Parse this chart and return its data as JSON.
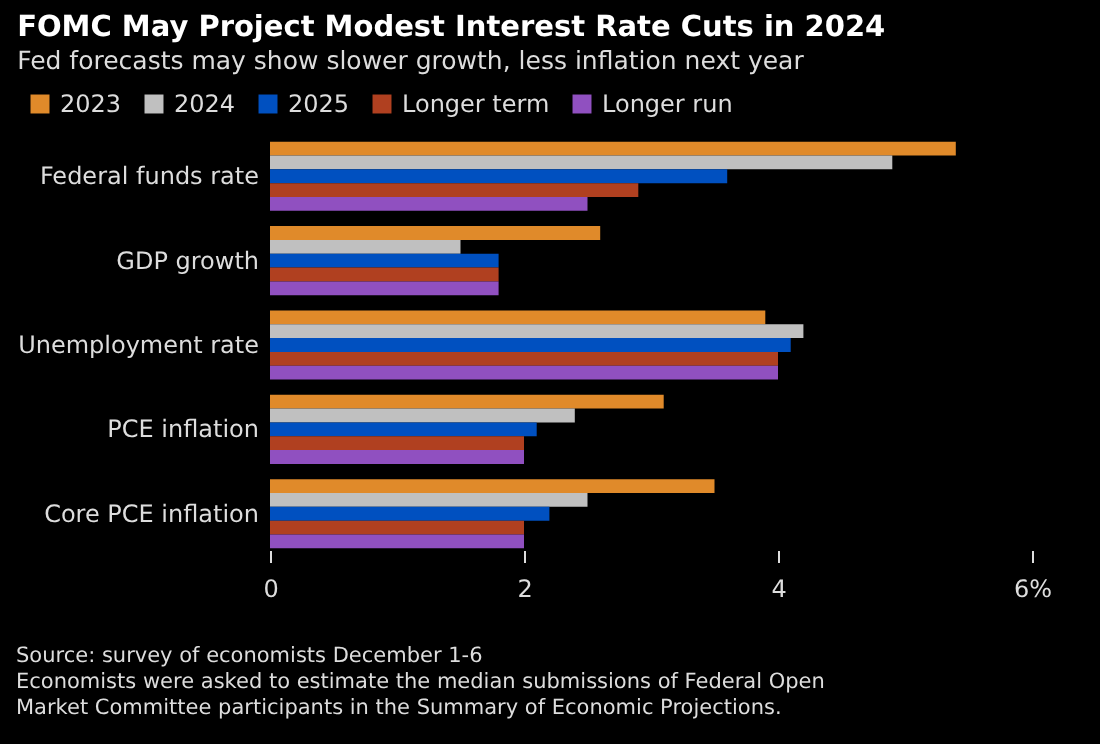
{
  "chart_data": {
    "type": "bar",
    "orientation": "horizontal",
    "title": "FOMC May Project Modest Interest Rate Cuts in 2024",
    "subtitle": "Fed forecasts may show slower growth, less inflation next year",
    "categories": [
      "Federal funds rate",
      "GDP growth",
      "Unemployment rate",
      "PCE inflation",
      "Core PCE inflation"
    ],
    "series": [
      {
        "name": "2023",
        "color": "#e08a2a",
        "values": [
          5.4,
          2.6,
          3.9,
          3.1,
          3.5
        ]
      },
      {
        "name": "2024",
        "color": "#c0c0c0",
        "values": [
          4.9,
          1.5,
          4.2,
          2.4,
          2.5
        ]
      },
      {
        "name": "2025",
        "color": "#0050c0",
        "values": [
          3.6,
          1.8,
          4.1,
          2.1,
          2.2
        ]
      },
      {
        "name": "Longer term",
        "color": "#b04020",
        "values": [
          2.9,
          1.8,
          4.0,
          2.0,
          2.0
        ]
      },
      {
        "name": "Longer run",
        "color": "#9050c0",
        "values": [
          2.5,
          1.8,
          4.0,
          2.0,
          2.0
        ]
      }
    ],
    "xlim": [
      0,
      6
    ],
    "xticks": [
      0,
      2,
      4,
      {
        "value": 6,
        "label": "6%"
      }
    ],
    "grid": false,
    "legend": "top left",
    "annotations": [
      "Source: survey of economists December 1-6",
      "Economists were asked to estimate the median submissions of Federal Open Market Committee participants in the Summary of Economic Projections."
    ]
  }
}
